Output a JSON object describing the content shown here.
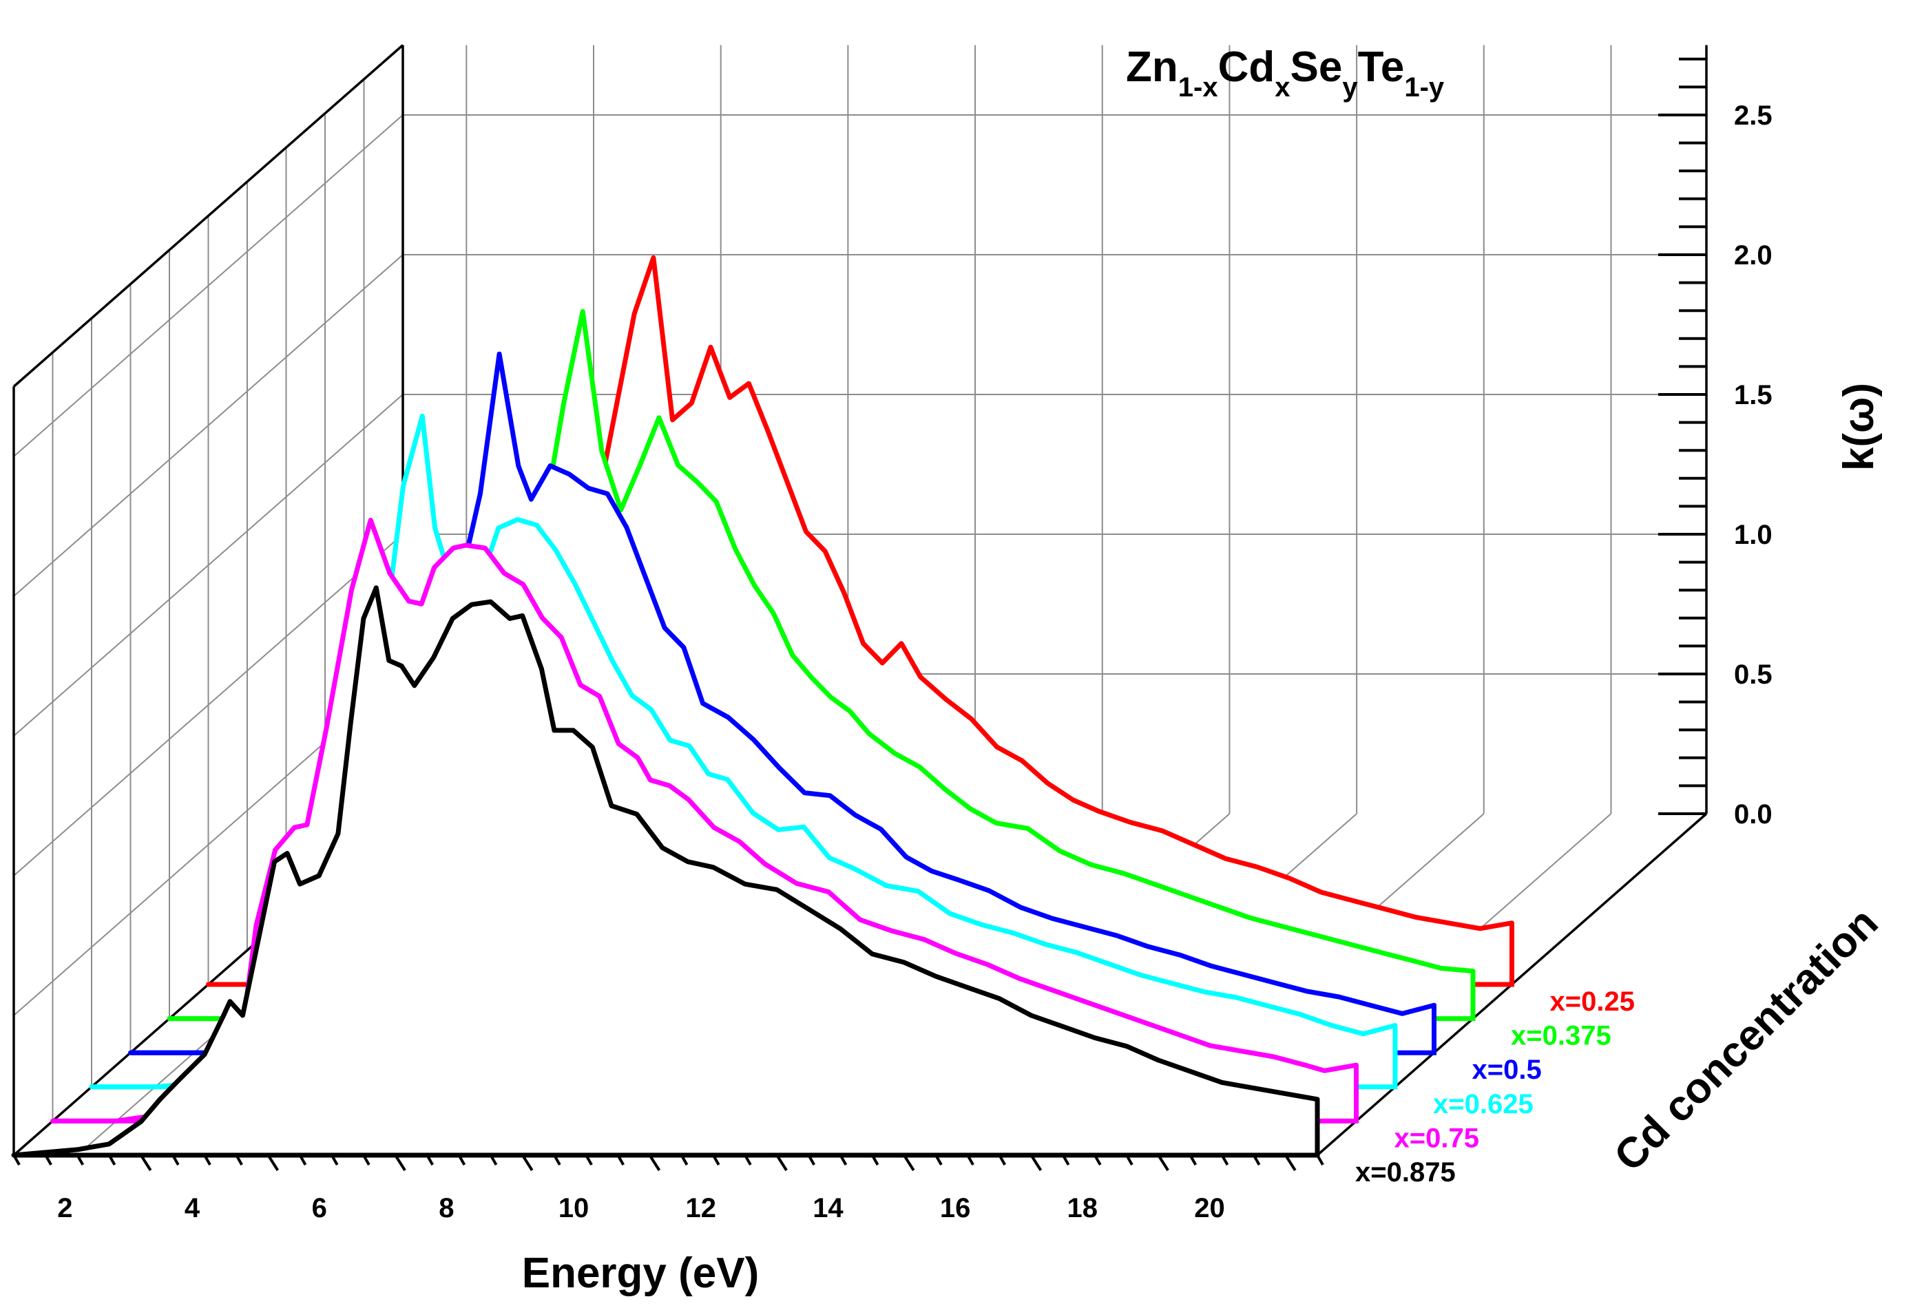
{
  "chart_data": {
    "type": "line",
    "style": "3d-waterfall",
    "title": {
      "parts": [
        {
          "text": "Zn",
          "sub": false
        },
        {
          "text": "1-x",
          "sub": true
        },
        {
          "text": "Cd",
          "sub": false
        },
        {
          "text": "x",
          "sub": true
        },
        {
          "text": "Se",
          "sub": false
        },
        {
          "text": "y",
          "sub": true
        },
        {
          "text": "Te",
          "sub": false
        },
        {
          "text": "1-y",
          "sub": true
        }
      ]
    },
    "xlabel": "Energy (eV)",
    "ylabel": "k(ω)",
    "zlabel": "Cd concentration",
    "x_range": [
      1,
      21.5
    ],
    "y_range": [
      0,
      2.75
    ],
    "x_ticks": [
      2,
      4,
      6,
      8,
      10,
      12,
      14,
      16,
      18,
      20
    ],
    "y_ticks": [
      "0.0",
      "0.5",
      "1.0",
      "1.5",
      "2.0",
      "2.5"
    ],
    "series": [
      {
        "name": "x=0.875",
        "color": "#000000",
        "x": [
          1.0,
          2.0,
          2.5,
          3.0,
          3.3,
          3.6,
          4.0,
          4.3,
          4.4,
          4.6,
          4.8,
          5.1,
          5.3,
          5.5,
          5.8,
          6.1,
          6.3,
          6.5,
          6.7,
          6.9,
          7.1,
          7.3,
          7.6,
          7.9,
          8.2,
          8.5,
          8.8,
          9.0,
          9.3,
          9.5,
          9.8,
          10.1,
          10.4,
          10.8,
          11.2,
          11.6,
          12.0,
          12.5,
          13.0,
          13.5,
          14.0,
          14.5,
          15.0,
          15.5,
          16.0,
          16.5,
          17.0,
          17.5,
          18.0,
          18.5,
          19.0,
          19.5,
          20.0,
          20.5,
          21.0,
          21.5
        ],
        "y": [
          0.0,
          0.02,
          0.04,
          0.12,
          0.2,
          0.27,
          0.36,
          0.5,
          0.55,
          0.5,
          0.72,
          1.05,
          1.08,
          0.97,
          1.0,
          1.15,
          1.55,
          1.92,
          2.03,
          1.77,
          1.75,
          1.68,
          1.78,
          1.92,
          1.97,
          1.98,
          1.92,
          1.93,
          1.74,
          1.52,
          1.52,
          1.46,
          1.25,
          1.22,
          1.1,
          1.05,
          1.03,
          0.97,
          0.95,
          0.88,
          0.81,
          0.72,
          0.69,
          0.64,
          0.6,
          0.56,
          0.5,
          0.46,
          0.42,
          0.39,
          0.34,
          0.3,
          0.26,
          0.24,
          0.22,
          0.2
        ]
      },
      {
        "name": "x=0.75",
        "color": "#ff00ff",
        "x": [
          1.0,
          2.0,
          2.6,
          3.0,
          3.4,
          3.7,
          4.0,
          4.2,
          4.5,
          4.8,
          5.0,
          5.3,
          5.7,
          6.0,
          6.3,
          6.6,
          6.8,
          7.0,
          7.3,
          7.5,
          7.8,
          8.1,
          8.4,
          8.7,
          9.0,
          9.3,
          9.6,
          9.9,
          10.2,
          10.4,
          10.7,
          11.0,
          11.4,
          11.8,
          12.2,
          12.7,
          13.2,
          13.7,
          14.2,
          14.7,
          15.2,
          15.7,
          16.2,
          16.7,
          17.2,
          17.7,
          18.2,
          18.7,
          19.2,
          19.7,
          20.2,
          20.7,
          21.0,
          21.5
        ],
        "y": [
          0.0,
          0.0,
          0.02,
          0.1,
          0.2,
          0.32,
          0.35,
          0.7,
          0.97,
          1.05,
          1.06,
          1.4,
          1.9,
          2.15,
          1.96,
          1.86,
          1.85,
          1.98,
          2.05,
          2.06,
          2.05,
          1.96,
          1.92,
          1.8,
          1.73,
          1.56,
          1.52,
          1.35,
          1.3,
          1.22,
          1.2,
          1.15,
          1.05,
          1.0,
          0.92,
          0.85,
          0.82,
          0.72,
          0.68,
          0.65,
          0.6,
          0.56,
          0.51,
          0.47,
          0.43,
          0.39,
          0.35,
          0.31,
          0.27,
          0.25,
          0.23,
          0.2,
          0.18,
          0.2
        ]
      },
      {
        "name": "x=0.625",
        "color": "#00ffff",
        "x": [
          1.0,
          2.0,
          3.0,
          3.6,
          4.0,
          4.3,
          4.6,
          4.9,
          5.1,
          5.3,
          5.6,
          5.9,
          6.2,
          6.4,
          6.6,
          6.8,
          7.1,
          7.4,
          7.7,
          8.0,
          8.3,
          8.6,
          8.9,
          9.2,
          9.5,
          9.8,
          10.1,
          10.4,
          10.7,
          11.0,
          11.4,
          11.8,
          12.2,
          12.6,
          13.0,
          13.5,
          14.0,
          14.5,
          15.0,
          15.5,
          16.0,
          16.5,
          17.0,
          17.5,
          18.0,
          18.5,
          19.0,
          19.5,
          20.0,
          20.5,
          21.0,
          21.5
        ],
        "y": [
          0.0,
          0.0,
          0.02,
          0.06,
          0.3,
          0.6,
          0.85,
          1.0,
          1.04,
          1.3,
          1.6,
          2.15,
          2.4,
          2.0,
          1.85,
          1.74,
          1.8,
          2.0,
          2.03,
          2.01,
          1.92,
          1.8,
          1.66,
          1.52,
          1.4,
          1.35,
          1.24,
          1.22,
          1.12,
          1.1,
          0.98,
          0.92,
          0.93,
          0.82,
          0.78,
          0.72,
          0.7,
          0.62,
          0.58,
          0.55,
          0.51,
          0.48,
          0.44,
          0.4,
          0.37,
          0.34,
          0.32,
          0.29,
          0.26,
          0.22,
          0.19,
          0.22
        ]
      },
      {
        "name": "x=0.5",
        "color": "#0000ff",
        "x": [
          1.0,
          2.0,
          3.0,
          4.0,
          4.5,
          4.8,
          5.0,
          5.3,
          5.6,
          5.9,
          6.2,
          6.5,
          6.8,
          7.1,
          7.3,
          7.6,
          7.9,
          8.2,
          8.5,
          8.8,
          9.1,
          9.4,
          9.7,
          10.0,
          10.4,
          10.8,
          11.2,
          11.6,
          12.0,
          12.4,
          12.8,
          13.2,
          13.6,
          14.0,
          14.5,
          15.0,
          15.5,
          16.0,
          16.5,
          17.0,
          17.5,
          18.0,
          18.5,
          19.0,
          19.5,
          20.0,
          20.5,
          21.0,
          21.5
        ],
        "y": [
          0.0,
          0.0,
          0.0,
          0.01,
          0.1,
          0.3,
          0.6,
          0.85,
          1.1,
          1.45,
          1.7,
          2.0,
          2.5,
          2.1,
          1.98,
          2.1,
          2.07,
          2.02,
          2.0,
          1.88,
          1.7,
          1.52,
          1.45,
          1.25,
          1.2,
          1.12,
          1.02,
          0.93,
          0.92,
          0.85,
          0.8,
          0.7,
          0.65,
          0.62,
          0.58,
          0.52,
          0.48,
          0.45,
          0.42,
          0.38,
          0.35,
          0.31,
          0.28,
          0.25,
          0.22,
          0.2,
          0.17,
          0.14,
          0.17
        ]
      },
      {
        "name": "x=0.375",
        "color": "#00ff00",
        "x": [
          1.0,
          2.0,
          3.0,
          4.0,
          5.0,
          5.4,
          5.7,
          6.0,
          6.3,
          6.6,
          6.9,
          7.2,
          7.5,
          7.8,
          8.1,
          8.4,
          8.7,
          9.0,
          9.3,
          9.6,
          9.9,
          10.2,
          10.5,
          10.8,
          11.1,
          11.4,
          11.7,
          12.0,
          12.4,
          12.8,
          13.2,
          13.6,
          14.0,
          14.5,
          15.0,
          15.5,
          16.0,
          16.5,
          17.0,
          17.5,
          18.0,
          18.5,
          19.0,
          19.5,
          20.0,
          20.5,
          21.0,
          21.5
        ],
        "y": [
          0.0,
          0.0,
          0.0,
          0.0,
          0.02,
          0.2,
          0.55,
          0.8,
          1.15,
          1.5,
          1.8,
          2.2,
          2.53,
          2.03,
          1.82,
          1.98,
          2.15,
          1.98,
          1.92,
          1.85,
          1.68,
          1.55,
          1.45,
          1.3,
          1.22,
          1.15,
          1.1,
          1.02,
          0.95,
          0.9,
          0.82,
          0.75,
          0.7,
          0.68,
          0.6,
          0.55,
          0.52,
          0.48,
          0.44,
          0.4,
          0.36,
          0.33,
          0.3,
          0.27,
          0.24,
          0.21,
          0.18,
          0.17
        ]
      },
      {
        "name": "x=0.25",
        "color": "#ff0000",
        "x": [
          1.0,
          2.0,
          3.0,
          4.0,
          5.0,
          5.5,
          5.9,
          6.2,
          6.5,
          6.8,
          7.1,
          7.4,
          7.7,
          8.0,
          8.3,
          8.6,
          8.9,
          9.2,
          9.5,
          9.8,
          10.1,
          10.4,
          10.7,
          11.0,
          11.3,
          11.6,
          11.9,
          12.2,
          12.6,
          13.0,
          13.4,
          13.8,
          14.2,
          14.6,
          15.0,
          15.5,
          16.0,
          16.5,
          17.0,
          17.5,
          18.0,
          18.5,
          19.0,
          19.5,
          20.0,
          20.5,
          21.0,
          21.5
        ],
        "y": [
          0.0,
          0.0,
          0.0,
          0.0,
          0.0,
          0.1,
          0.4,
          0.7,
          1.0,
          1.35,
          1.7,
          2.05,
          2.4,
          2.6,
          2.02,
          2.08,
          2.28,
          2.1,
          2.15,
          1.98,
          1.8,
          1.62,
          1.55,
          1.4,
          1.22,
          1.15,
          1.22,
          1.1,
          1.02,
          0.95,
          0.85,
          0.8,
          0.72,
          0.66,
          0.62,
          0.58,
          0.55,
          0.5,
          0.45,
          0.42,
          0.38,
          0.33,
          0.3,
          0.27,
          0.24,
          0.22,
          0.2,
          0.22
        ]
      }
    ]
  }
}
